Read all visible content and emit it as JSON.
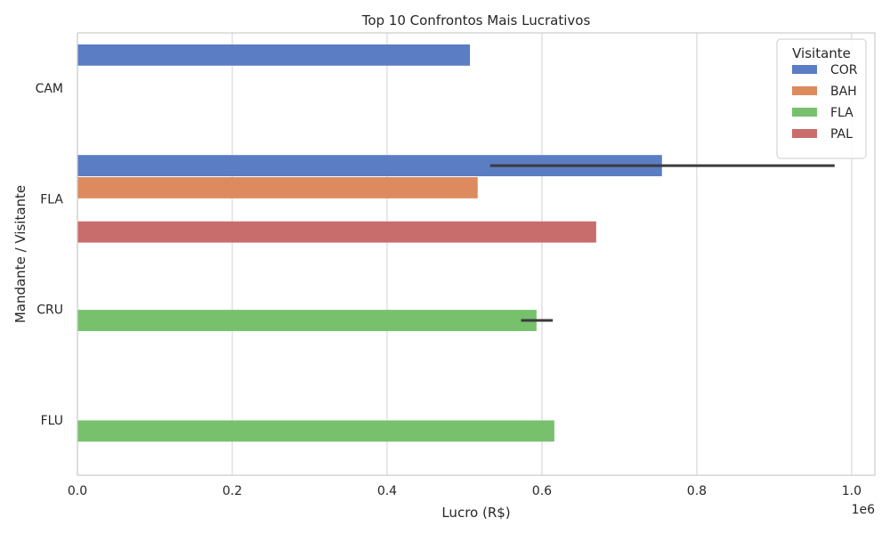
{
  "chart_data": {
    "type": "bar",
    "orientation": "horizontal",
    "title": "Top 10 Confrontos Mais Lucrativos",
    "xlabel": "Lucro (R$)",
    "ylabel": "Mandante / Visitante",
    "x_scale_label": "1e6",
    "xlim": [
      0,
      1030000
    ],
    "x_ticks": [
      0,
      200000,
      400000,
      600000,
      800000,
      1000000
    ],
    "x_tick_labels": [
      "0.0",
      "0.2",
      "0.4",
      "0.6",
      "0.8",
      "1.0"
    ],
    "grid": true,
    "categories": [
      "CAM",
      "FLA",
      "CRU",
      "FLU"
    ],
    "legend": {
      "title": "Visitante",
      "placement": "top-right"
    },
    "series": [
      {
        "name": "COR",
        "color": "#5a7dc4",
        "values": [
          507000,
          755000,
          null,
          null
        ],
        "error_bars": [
          null,
          [
            533000,
            978000
          ],
          null,
          null
        ]
      },
      {
        "name": "BAH",
        "color": "#dd8b5e",
        "values": [
          null,
          517000,
          null,
          null
        ],
        "error_bars": [
          null,
          null,
          null,
          null
        ]
      },
      {
        "name": "FLA",
        "color": "#77c16d",
        "values": [
          null,
          null,
          593000,
          616000
        ],
        "error_bars": [
          null,
          null,
          [
            573000,
            614000
          ],
          null
        ]
      },
      {
        "name": "PAL",
        "color": "#c86c6c",
        "values": [
          null,
          670000,
          null,
          null
        ],
        "error_bars": [
          null,
          null,
          null,
          null
        ]
      }
    ],
    "colors": {
      "grid": "#d9d9d9",
      "axis_spine": "#cccccc",
      "error_bar": "#3b3b3b",
      "text": "#262626"
    }
  }
}
